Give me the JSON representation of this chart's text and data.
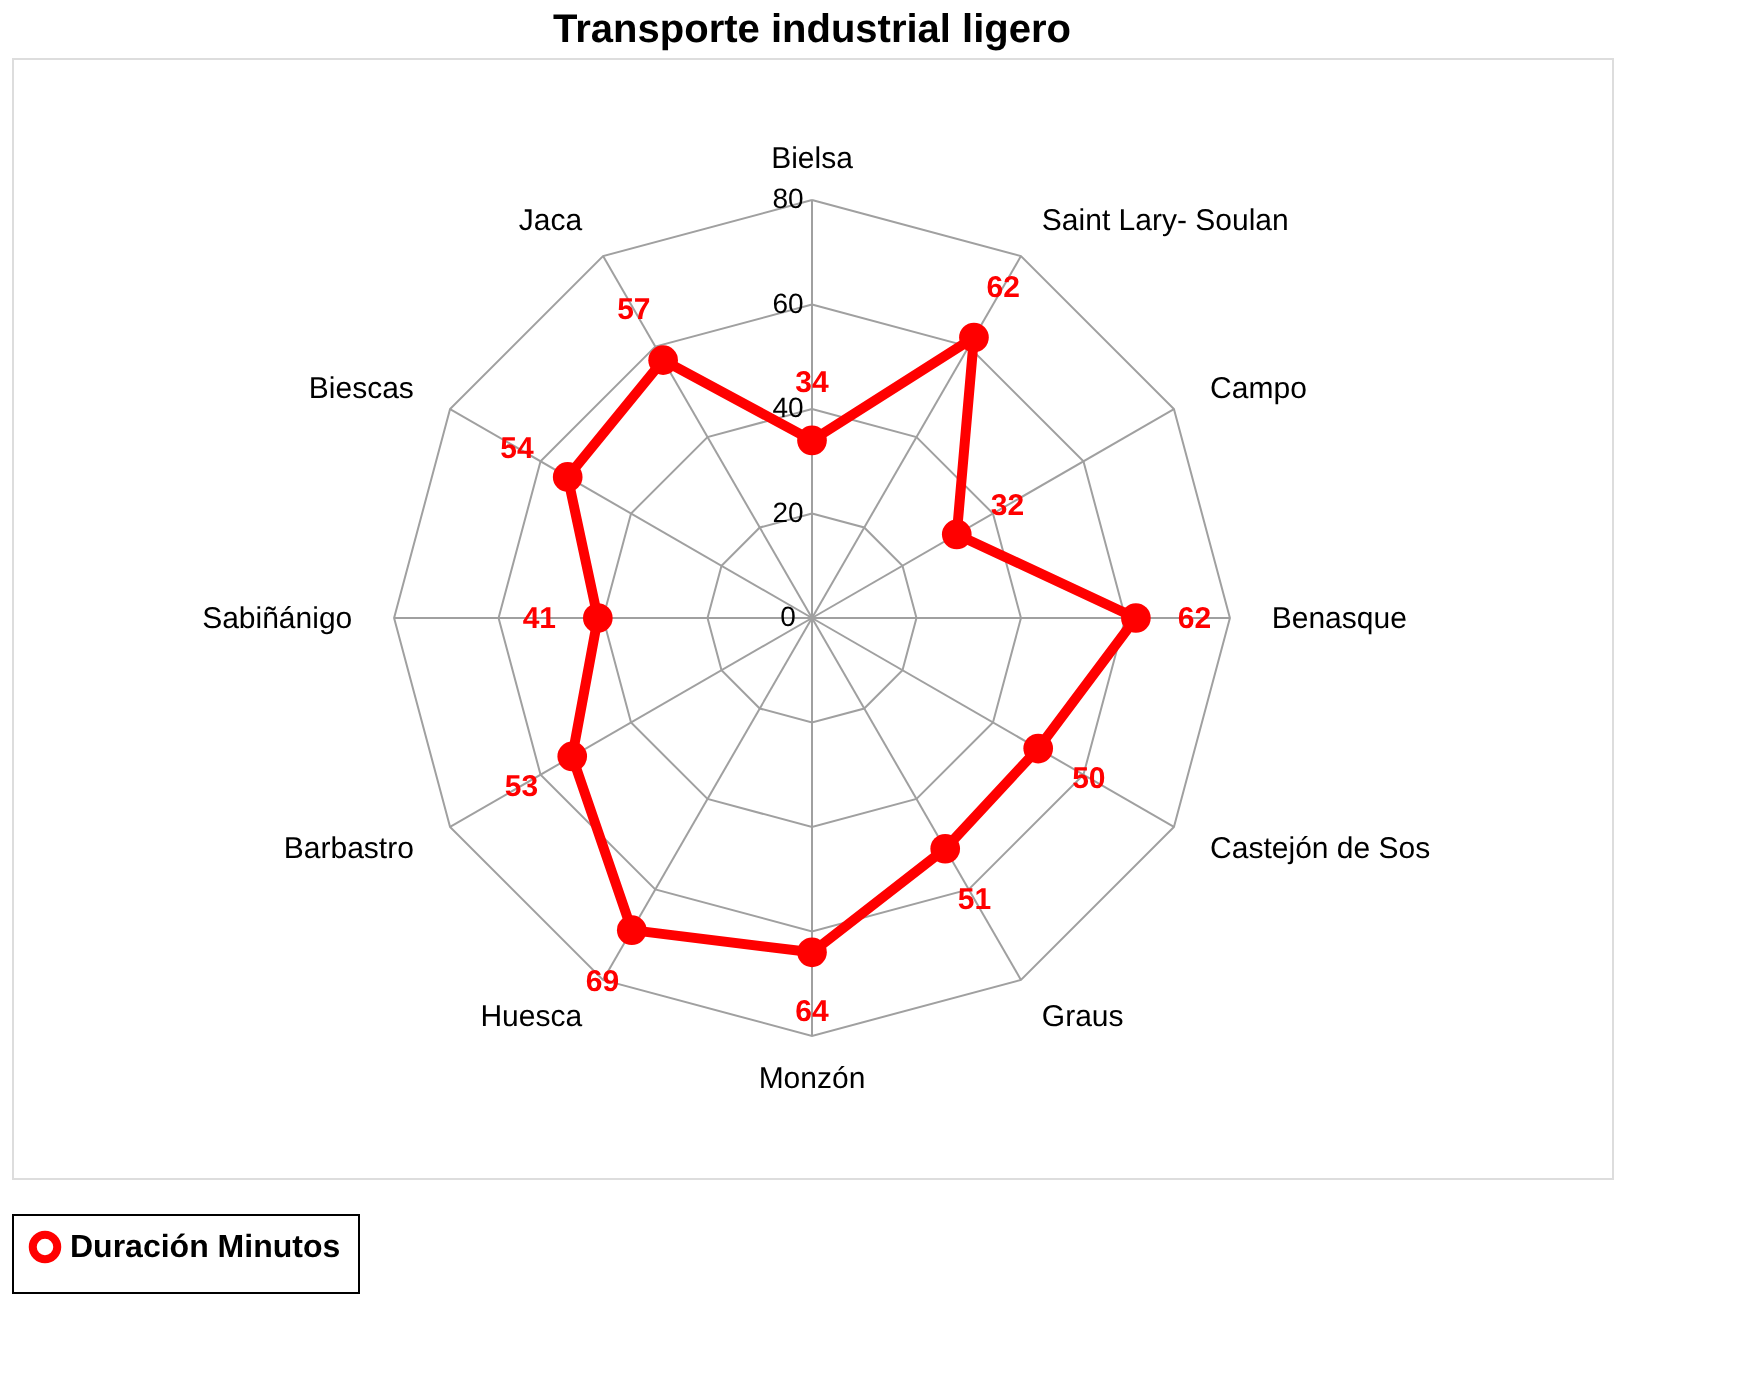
{
  "chart_data": {
    "type": "radar",
    "title": "Transporte industrial ligero",
    "categories": [
      "Bielsa",
      "Saint Lary- Soulan",
      "Campo",
      "Benasque",
      "Castejón de Sos",
      "Graus",
      "Monzón",
      "Huesca",
      "Barbastro",
      "Sabiñánigo",
      "Biescas",
      "Jaca"
    ],
    "series": [
      {
        "name": "Duración Minutos",
        "color": "#ff0000",
        "values": [
          34,
          62,
          32,
          62,
          50,
          51,
          64,
          69,
          53,
          41,
          54,
          57
        ]
      }
    ],
    "ylim": [
      0,
      80
    ],
    "yticks": [
      0,
      20,
      40,
      60,
      80
    ],
    "grid": true,
    "legend": "bottom",
    "marker": "circle",
    "line_style": "solid",
    "data_labels": true
  }
}
